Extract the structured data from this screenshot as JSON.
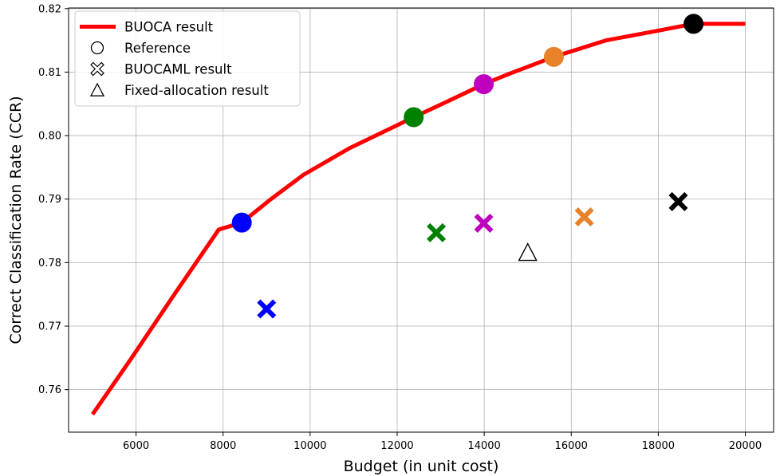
{
  "chart_data": {
    "type": "line",
    "xlabel": "Budget (in unit cost)",
    "ylabel": "Correct Classification Rate (CCR)",
    "xlim": [
      4450,
      20650
    ],
    "ylim": [
      0.7533,
      0.8201
    ],
    "x_ticks": [
      6000,
      8000,
      10000,
      12000,
      14000,
      16000,
      18000,
      20000
    ],
    "x_tick_labels": [
      "6000",
      "8000",
      "10000",
      "12000",
      "14000",
      "16000",
      "18000",
      "20000"
    ],
    "y_ticks": [
      0.76,
      0.77,
      0.78,
      0.79,
      0.8,
      0.81,
      0.82
    ],
    "y_tick_labels": [
      "0.76",
      "0.77",
      "0.78",
      "0.79",
      "0.80",
      "0.81",
      "0.82"
    ],
    "grid": true,
    "legend_position": "top-left",
    "legend": [
      {
        "label": "BUOCA result",
        "marker": "line",
        "color": "#ff0000"
      },
      {
        "label": "Reference",
        "marker": "circle-open"
      },
      {
        "label": "BUOCAML result",
        "marker": "x-open"
      },
      {
        "label": "Fixed-allocation result",
        "marker": "triangle-open"
      }
    ],
    "series": [
      {
        "name": "BUOCA result",
        "type": "line",
        "color": "#ff0000",
        "x": [
          5000,
          5900,
          6900,
          7900,
          8430,
          9100,
          9840,
          10900,
          12050,
          12380,
          13100,
          13990,
          14600,
          15600,
          16800,
          17900,
          18810,
          20000
        ],
        "y": [
          0.7561,
          0.765,
          0.7752,
          0.7852,
          0.7863,
          0.79,
          0.7938,
          0.798,
          0.8018,
          0.8029,
          0.8052,
          0.8081,
          0.8098,
          0.8124,
          0.815,
          0.8164,
          0.8176,
          0.8176
        ]
      },
      {
        "name": "Reference",
        "type": "scatter",
        "marker": "circle",
        "x": [
          8430,
          12380,
          13990,
          15600,
          18810
        ],
        "y": [
          0.7863,
          0.8029,
          0.8081,
          0.8124,
          0.8176
        ],
        "colors": [
          "#0000ff",
          "#008000",
          "#bf00bf",
          "#e8822a",
          "#000000"
        ]
      },
      {
        "name": "BUOCAML result",
        "type": "scatter",
        "marker": "x",
        "x": [
          9000,
          12900,
          13990,
          16300,
          18460
        ],
        "y": [
          0.7727,
          0.7847,
          0.7862,
          0.7872,
          0.7896
        ],
        "colors": [
          "#0000ff",
          "#008000",
          "#bf00bf",
          "#e8822a",
          "#000000"
        ]
      },
      {
        "name": "Fixed-allocation result",
        "type": "scatter",
        "marker": "triangle-open",
        "x": [
          15000
        ],
        "y": [
          0.7816
        ],
        "colors": [
          "#000000"
        ]
      }
    ]
  }
}
